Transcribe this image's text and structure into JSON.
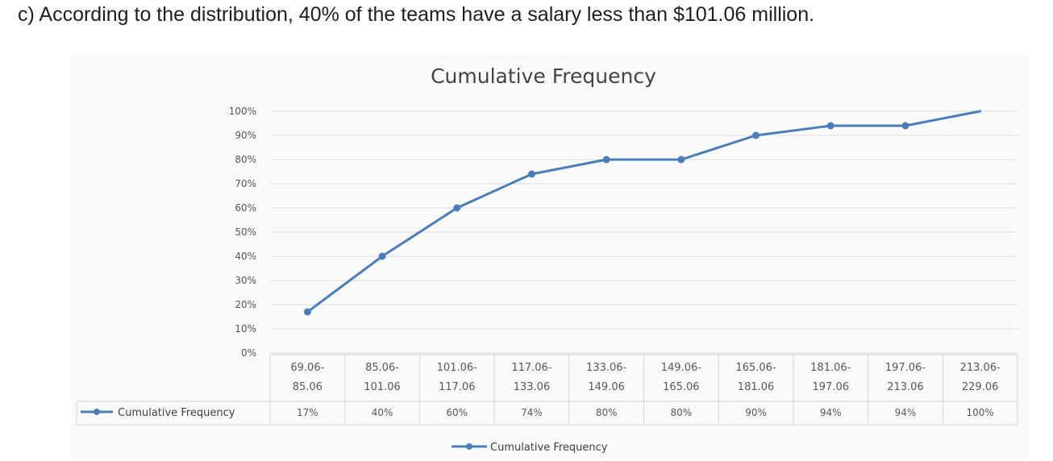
{
  "question": {
    "text": "c) According to the distribution, 40% of the teams have a salary less than $101.06 million."
  },
  "chart_data": {
    "type": "line",
    "title": "Cumulative Frequency",
    "xlabel": "",
    "ylabel": "",
    "ylim": [
      0,
      100
    ],
    "yticks": [
      "0%",
      "10%",
      "20%",
      "30%",
      "40%",
      "50%",
      "60%",
      "70%",
      "80%",
      "90%",
      "100%"
    ],
    "categories": [
      [
        "69.06-",
        "85.06"
      ],
      [
        "85.06-",
        "101.06"
      ],
      [
        "101.06-",
        "117.06"
      ],
      [
        "117.06-",
        "133.06"
      ],
      [
        "133.06-",
        "149.06"
      ],
      [
        "149.06-",
        "165.06"
      ],
      [
        "165.06-",
        "181.06"
      ],
      [
        "181.06-",
        "197.06"
      ],
      [
        "197.06-",
        "213.06"
      ],
      [
        "213.06-",
        "229.06"
      ]
    ],
    "series": [
      {
        "name": "Cumulative Frequency",
        "values": [
          17,
          40,
          60,
          74,
          80,
          80,
          90,
          94,
          94,
          100
        ],
        "labels": [
          "17%",
          "40%",
          "60%",
          "74%",
          "80%",
          "80%",
          "90%",
          "94%",
          "94%",
          "100%"
        ],
        "color": "#4a7ebb"
      }
    ],
    "legend": {
      "position": "bottom",
      "label": "Cumulative Frequency"
    },
    "grid": true,
    "data_table": true
  }
}
